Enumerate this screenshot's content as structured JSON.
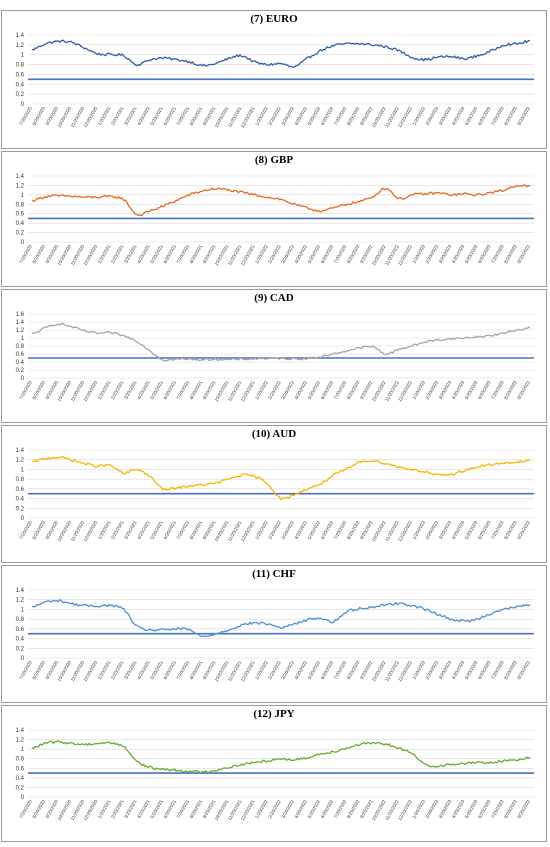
{
  "chart_data": [
    {
      "type": "line",
      "title": "(7) EURO",
      "color": "#2e5fa8",
      "threshold": 0.5,
      "threshold_color": "#4472c4",
      "ylim": [
        0,
        1.4
      ],
      "yticks": [
        "0",
        "0.2",
        "0.4",
        "0.6",
        "0.8",
        "1",
        "1.2",
        "1.4"
      ],
      "x_labels": [
        "7/20/2020",
        "8/20/2020",
        "9/20/2020",
        "10/20/2020",
        "11/20/2020",
        "12/20/2020",
        "1/20/2021",
        "2/20/2021",
        "3/20/2021",
        "4/20/2021",
        "5/20/2021",
        "6/20/2021",
        "7/20/2021",
        "8/20/2021",
        "9/20/2021",
        "10/20/2021",
        "11/20/2021",
        "12/20/2021",
        "1/20/2022",
        "2/20/2022",
        "3/20/2022",
        "4/20/2022",
        "5/20/2022",
        "6/20/2022",
        "7/20/2022",
        "8/20/2022",
        "9/20/2022",
        "10/20/2022",
        "11/20/2022",
        "12/20/2022",
        "1/20/2023",
        "2/20/2023",
        "3/20/2023",
        "4/20/2023",
        "5/20/2023",
        "6/20/2023",
        "7/20/2023",
        "8/20/2023",
        "9/20/2023"
      ],
      "values": [
        1.1,
        1.22,
        1.27,
        1.25,
        1.14,
        1.02,
        1.0,
        0.98,
        0.8,
        0.9,
        0.93,
        0.9,
        0.86,
        0.78,
        0.82,
        0.92,
        0.98,
        0.85,
        0.8,
        0.82,
        0.75,
        0.92,
        1.08,
        1.18,
        1.22,
        1.22,
        1.2,
        1.16,
        1.08,
        0.95,
        0.9,
        0.95,
        0.96,
        0.92,
        0.98,
        1.07,
        1.2,
        1.22,
        1.28
      ]
    },
    {
      "type": "line",
      "title": "(8) GBP",
      "color": "#e46c1d",
      "threshold": 0.5,
      "threshold_color": "#4472c4",
      "ylim": [
        0,
        1.4
      ],
      "yticks": [
        "0",
        "0.2",
        "0.4",
        "0.6",
        "0.8",
        "1",
        "1.2",
        "1.4"
      ],
      "x_labels": [
        "7/20/2020",
        "8/20/2020",
        "9/20/2020",
        "10/20/2020",
        "11/20/2020",
        "12/20/2020",
        "1/20/2021",
        "2/20/2021",
        "3/20/2021",
        "4/20/2021",
        "5/20/2021",
        "6/20/2021",
        "7/20/2021",
        "8/20/2021",
        "9/20/2021",
        "10/20/2021",
        "11/20/2021",
        "12/20/2021",
        "1/20/2022",
        "2/20/2022",
        "3/20/2022",
        "4/20/2022",
        "5/20/2022",
        "6/20/2022",
        "7/20/2022",
        "8/20/2022",
        "9/20/2022",
        "10/20/2022",
        "11/20/2022",
        "12/20/2022",
        "1/20/2023",
        "2/20/2023",
        "3/20/2023",
        "4/20/2023",
        "5/20/2023",
        "6/20/2023",
        "7/20/2023",
        "8/20/2023",
        "9/20/2023"
      ],
      "values": [
        0.88,
        0.96,
        0.98,
        0.97,
        0.95,
        0.95,
        0.96,
        0.9,
        0.58,
        0.66,
        0.76,
        0.88,
        1.0,
        1.08,
        1.13,
        1.1,
        1.05,
        1.0,
        0.95,
        0.9,
        0.8,
        0.72,
        0.66,
        0.72,
        0.8,
        0.86,
        0.96,
        1.14,
        0.92,
        1.0,
        1.02,
        1.04,
        1.0,
        1.02,
        1.0,
        1.05,
        1.1,
        1.2,
        1.18
      ]
    },
    {
      "type": "line",
      "title": "(9) CAD",
      "color": "#a6a6a6",
      "threshold": 0.5,
      "threshold_color": "#4472c4",
      "ylim": [
        0,
        1.6
      ],
      "yticks": [
        "0",
        "0.2",
        "0.4",
        "0.6",
        "0.8",
        "1",
        "1.2",
        "1.4",
        "1.6"
      ],
      "x_labels": [
        "7/20/2020",
        "8/20/2020",
        "9/20/2020",
        "10/20/2020",
        "11/20/2020",
        "12/20/2020",
        "1/20/2021",
        "2/20/2021",
        "3/20/2021",
        "4/20/2021",
        "5/20/2021",
        "6/20/2021",
        "7/20/2021",
        "8/20/2021",
        "9/20/2021",
        "10/20/2021",
        "11/20/2021",
        "12/20/2021",
        "1/20/2022",
        "2/20/2022",
        "3/20/2022",
        "4/20/2022",
        "5/20/2022",
        "6/20/2022",
        "7/20/2022",
        "8/20/2022",
        "9/20/2022",
        "10/20/2022",
        "11/20/2022",
        "12/20/2022",
        "1/20/2023",
        "2/20/2023",
        "3/20/2023",
        "4/20/2023",
        "5/20/2023",
        "6/20/2023",
        "7/20/2023",
        "8/20/2023",
        "9/20/2023"
      ],
      "values": [
        1.1,
        1.25,
        1.35,
        1.28,
        1.18,
        1.12,
        1.13,
        1.05,
        0.92,
        0.68,
        0.46,
        0.47,
        0.47,
        0.46,
        0.47,
        0.46,
        0.47,
        0.48,
        0.49,
        0.49,
        0.48,
        0.49,
        0.53,
        0.6,
        0.68,
        0.75,
        0.78,
        0.6,
        0.72,
        0.8,
        0.9,
        0.95,
        0.98,
        1.0,
        1.03,
        1.06,
        1.12,
        1.2,
        1.25
      ]
    },
    {
      "type": "line",
      "title": "(10) AUD",
      "color": "#f5b800",
      "threshold": 0.5,
      "threshold_color": "#4472c4",
      "ylim": [
        0,
        1.4
      ],
      "yticks": [
        "0",
        "0.2",
        "0.4",
        "0.6",
        "0.8",
        "1",
        "1.2",
        "1.4"
      ],
      "x_labels": [
        "7/20/2020",
        "8/20/2020",
        "9/20/2020",
        "10/20/2020",
        "11/20/2020",
        "12/20/2020",
        "1/20/2021",
        "2/20/2021",
        "3/20/2021",
        "4/20/2021",
        "5/20/2021",
        "6/20/2021",
        "7/20/2021",
        "8/20/2021",
        "9/20/2021",
        "10/20/2021",
        "11/20/2021",
        "12/20/2021",
        "1/20/2022",
        "2/20/2022",
        "3/20/2022",
        "4/20/2022",
        "5/20/2022",
        "6/20/2022",
        "7/20/2022",
        "8/20/2022",
        "9/20/2022",
        "10/20/2022",
        "11/20/2022",
        "12/20/2022",
        "1/20/2023",
        "2/20/2023",
        "3/20/2023",
        "4/20/2023",
        "5/20/2023",
        "6/20/2023",
        "7/20/2023",
        "8/20/2023",
        "9/20/2023"
      ],
      "values": [
        1.15,
        1.22,
        1.25,
        1.2,
        1.12,
        1.07,
        1.08,
        0.92,
        1.0,
        0.85,
        0.6,
        0.62,
        0.66,
        0.68,
        0.72,
        0.8,
        0.88,
        0.85,
        0.7,
        0.4,
        0.48,
        0.6,
        0.7,
        0.88,
        1.0,
        1.15,
        1.18,
        1.12,
        1.05,
        1.0,
        0.95,
        0.88,
        0.9,
        0.98,
        1.05,
        1.1,
        1.12,
        1.15,
        1.18
      ]
    },
    {
      "type": "line",
      "title": "(11) CHF",
      "color": "#4f8fd0",
      "threshold": 0.5,
      "threshold_color": "#4472c4",
      "ylim": [
        0,
        1.4
      ],
      "yticks": [
        "0",
        "0.2",
        "0.4",
        "0.6",
        "0.8",
        "1",
        "1.2",
        "1.4"
      ],
      "x_labels": [
        "7/20/2020",
        "8/20/2020",
        "9/20/2020",
        "10/20/2020",
        "11/20/2020",
        "12/20/2020",
        "1/20/2021",
        "2/20/2021",
        "3/20/2021",
        "4/20/2021",
        "5/20/2021",
        "6/20/2021",
        "7/20/2021",
        "8/20/2021",
        "9/20/2021",
        "10/20/2021",
        "11/20/2021",
        "12/20/2021",
        "1/20/2022",
        "2/20/2022",
        "3/20/2022",
        "4/20/2022",
        "5/20/2022",
        "6/20/2022",
        "7/20/2022",
        "8/20/2022",
        "9/20/2022",
        "10/20/2022",
        "11/20/2022",
        "12/20/2022",
        "1/20/2023",
        "2/20/2023",
        "3/20/2023",
        "4/20/2023",
        "5/20/2023",
        "6/20/2023",
        "7/20/2023",
        "8/20/2023",
        "9/20/2023"
      ],
      "values": [
        1.05,
        1.15,
        1.18,
        1.12,
        1.08,
        1.07,
        1.08,
        1.0,
        0.65,
        0.58,
        0.58,
        0.6,
        0.58,
        0.44,
        0.5,
        0.58,
        0.68,
        0.72,
        0.7,
        0.63,
        0.7,
        0.78,
        0.82,
        0.75,
        0.95,
        1.02,
        1.05,
        1.1,
        1.12,
        1.08,
        1.0,
        0.9,
        0.8,
        0.76,
        0.8,
        0.92,
        1.0,
        1.05,
        1.1
      ]
    },
    {
      "type": "line",
      "title": "(12) JPY",
      "color": "#6aaa2c",
      "threshold": 0.5,
      "threshold_color": "#4472c4",
      "ylim": [
        0,
        1.4
      ],
      "yticks": [
        "0",
        "0.2",
        "0.4",
        "0.6",
        "0.8",
        "1",
        "1.2",
        "1.4"
      ],
      "x_labels": [
        "7/20/2020",
        "8/20/2020",
        "9/20/2020",
        "10/20/2020",
        "11/20/2020",
        "12/20/2020",
        "1/20/2021",
        "2/20/2021",
        "3/20/2021",
        "4/20/2021",
        "5/20/2021",
        "6/20/2021",
        "7/20/2021",
        "8/20/2021",
        "9/20/2021",
        "10/20/2021",
        "11/20/2021",
        "12/20/2021",
        "1/20/2022",
        "2/20/2022",
        "3/20/2022",
        "4/20/2022",
        "5/20/2022",
        "6/20/2022",
        "7/20/2022",
        "8/20/2022",
        "9/20/2022",
        "10/20/2022",
        "11/20/2022",
        "12/20/2022",
        "1/20/2023",
        "2/20/2023",
        "3/20/2023",
        "4/20/2023",
        "5/20/2023",
        "6/20/2023",
        "7/20/2023",
        "8/20/2023",
        "9/20/2023"
      ],
      "values": [
        1.02,
        1.12,
        1.15,
        1.12,
        1.1,
        1.12,
        1.13,
        1.05,
        0.75,
        0.62,
        0.58,
        0.56,
        0.54,
        0.52,
        0.56,
        0.62,
        0.68,
        0.72,
        0.76,
        0.8,
        0.78,
        0.82,
        0.9,
        0.95,
        1.02,
        1.1,
        1.12,
        1.1,
        1.02,
        0.9,
        0.68,
        0.65,
        0.68,
        0.7,
        0.72,
        0.72,
        0.75,
        0.78,
        0.83
      ]
    }
  ]
}
